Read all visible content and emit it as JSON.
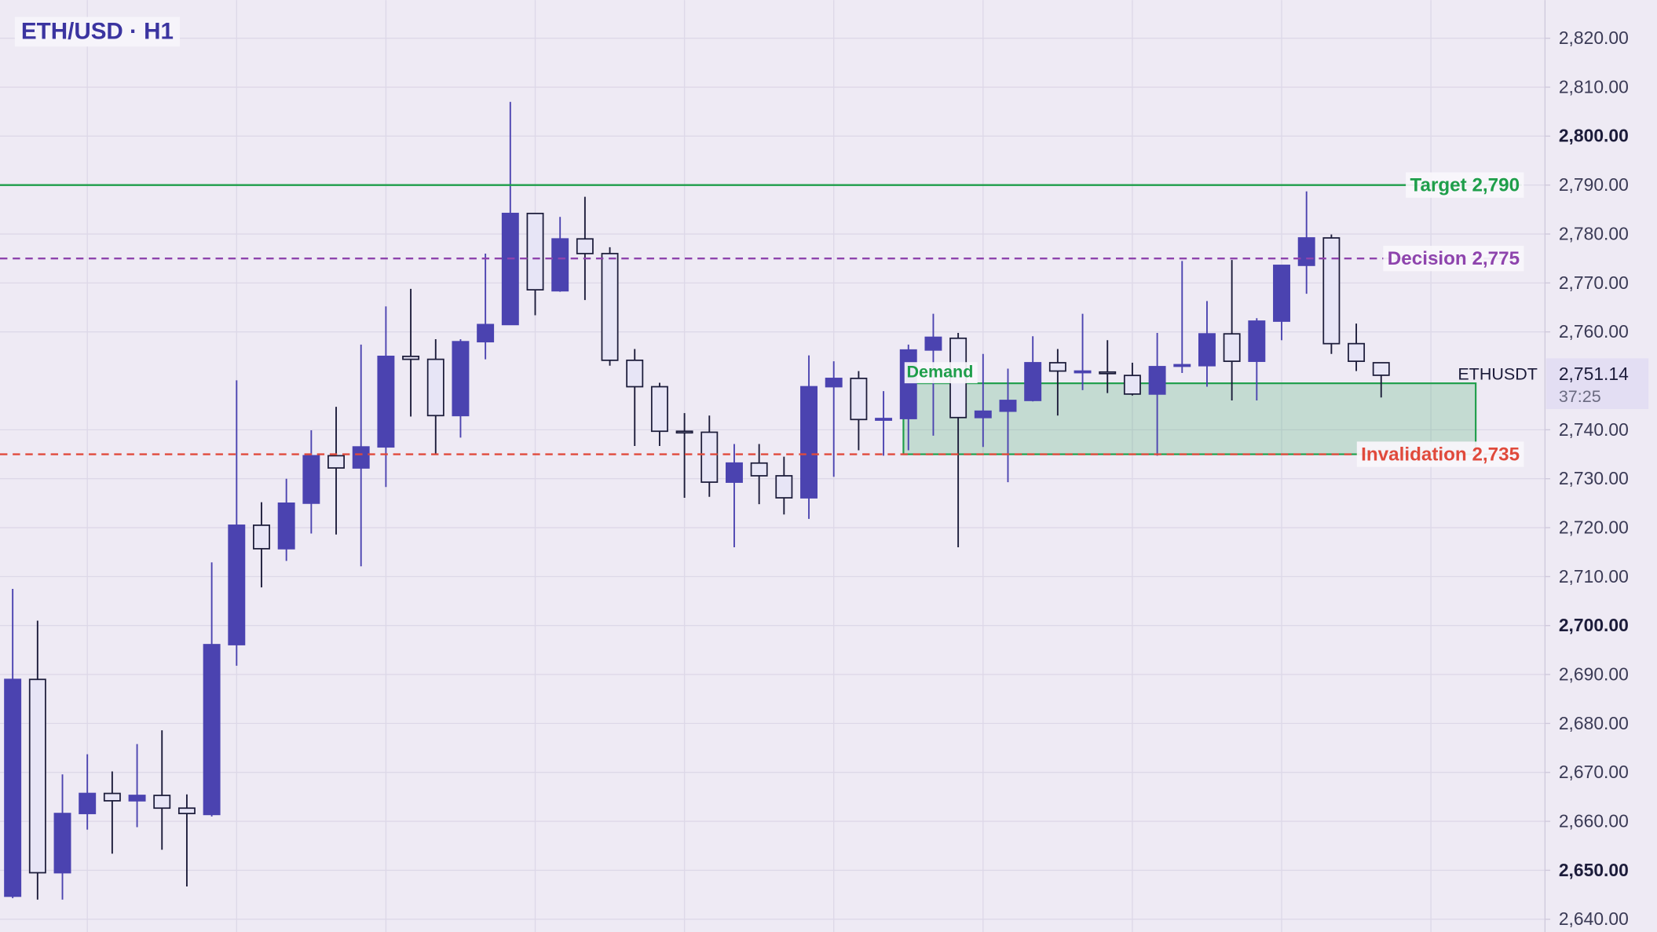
{
  "chart_data": {
    "type": "candlestick",
    "title": "ETH/USD · H1",
    "symbol": "ETHUSDT",
    "open": [
      2644.7,
      2689,
      2649.5,
      2661.6,
      2665.7,
      2664.2,
      2665.3,
      2662.7,
      2661.4,
      2696.1,
      2720.5,
      2715.7,
      2725,
      2734.7,
      2732.2,
      2736.5,
      2755,
      2754.4,
      2742.9,
      2758,
      2761.5,
      2784.2,
      2768.4,
      2779,
      2776,
      2754.2,
      2748.8,
      2739.7,
      2739.5,
      2729.3,
      2733.2,
      2730.6,
      2726.1,
      2748.8,
      2750.5,
      2742.1,
      2742.3,
      2756.3,
      2758.7,
      2742.5,
      2743.8,
      2746,
      2753.7,
      2751.8,
      2751.8,
      2751.1,
      2747.3,
      2753.1,
      2753.1,
      2759.6,
      2754,
      2762.2,
      2773.6,
      2779.2,
      2757.6,
      2753.7
    ],
    "high": [
      2707.5,
      2701,
      2669.6,
      2673.7,
      2670.2,
      2675.8,
      2678.6,
      2665.5,
      2712.9,
      2750.1,
      2725.2,
      2730,
      2739.9,
      2744.7,
      2757.4,
      2765.2,
      2768.8,
      2758.5,
      2758.5,
      2776,
      2807,
      2784.2,
      2783.5,
      2787.6,
      2777.3,
      2756.5,
      2749.6,
      2743.4,
      2742.9,
      2737.1,
      2737.1,
      2734.5,
      2755.2,
      2754,
      2752,
      2747.9,
      2757.4,
      2763.7,
      2759.8,
      2755.5,
      2752.5,
      2759.1,
      2756.5,
      2763.7,
      2758.3,
      2753.7,
      2759.8,
      2774.5,
      2766.3,
      2774.7,
      2762.8,
      2773.6,
      2788.7,
      2779.9,
      2761.7,
      2753.7
    ],
    "low": [
      2644.3,
      2644,
      2644,
      2658.3,
      2653.4,
      2658.8,
      2654.2,
      2646.7,
      2661,
      2691.8,
      2707.8,
      2713.2,
      2718.8,
      2718.6,
      2712.1,
      2728.3,
      2742.7,
      2735,
      2738.4,
      2754.4,
      2761.5,
      2763.4,
      2768.2,
      2766.5,
      2753.1,
      2736.7,
      2736.7,
      2726.1,
      2726.3,
      2716,
      2724.8,
      2722.7,
      2721.8,
      2730.4,
      2735.8,
      2734.7,
      2735.8,
      2738.8,
      2716,
      2736.5,
      2729.3,
      2745.8,
      2742.9,
      2748.1,
      2747.5,
      2747,
      2734.7,
      2751.6,
      2748.8,
      2746,
      2746,
      2758.3,
      2767.8,
      2755.5,
      2752,
      2746.6
    ],
    "close": [
      2689,
      2649.5,
      2661.6,
      2665.7,
      2664.2,
      2665.3,
      2662.7,
      2661.6,
      2696.1,
      2720.5,
      2715.7,
      2725,
      2734.7,
      2732.2,
      2736.5,
      2755,
      2754.4,
      2742.9,
      2758,
      2761.5,
      2784.2,
      2768.6,
      2779,
      2776,
      2754.2,
      2748.8,
      2739.7,
      2739.5,
      2729.3,
      2733.2,
      2730.6,
      2726.1,
      2748.8,
      2750.5,
      2742.1,
      2742.3,
      2756.3,
      2758.9,
      2742.5,
      2743.8,
      2746,
      2753.7,
      2752,
      2752,
      2751.6,
      2747.3,
      2752.9,
      2753.3,
      2759.6,
      2754,
      2762.2,
      2773.6,
      2779.2,
      2757.6,
      2754,
      2751.14
    ],
    "up_color": "#4b43b0",
    "down_color": "#e7e5f6",
    "ylim": [
      2637.4,
      2827.8
    ],
    "yticks": [
      {
        "value": 2640,
        "label": "2,640.00"
      },
      {
        "value": 2650,
        "label": "2,650.00"
      },
      {
        "value": 2660,
        "label": "2,660.00"
      },
      {
        "value": 2670,
        "label": "2,670.00"
      },
      {
        "value": 2680,
        "label": "2,680.00"
      },
      {
        "value": 2690,
        "label": "2,690.00"
      },
      {
        "value": 2700,
        "label": "2,700.00"
      },
      {
        "value": 2710,
        "label": "2,710.00"
      },
      {
        "value": 2720,
        "label": "2,720.00"
      },
      {
        "value": 2730,
        "label": "2,730.00"
      },
      {
        "value": 2740,
        "label": "2,740.00"
      },
      {
        "value": 2760,
        "label": "2,760.00"
      },
      {
        "value": 2770,
        "label": "2,770.00"
      },
      {
        "value": 2780,
        "label": "2,780.00"
      },
      {
        "value": 2790,
        "label": "2,790.00"
      },
      {
        "value": 2800,
        "label": "2,800.00"
      },
      {
        "value": 2810,
        "label": "2,810.00"
      },
      {
        "value": 2820,
        "label": "2,820.00"
      }
    ],
    "grid": true,
    "levels": [
      {
        "label": "Target 2,790",
        "value": 2790,
        "color": "#1e9e4a",
        "style": "solid"
      },
      {
        "label": "Decision 2,775",
        "value": 2775,
        "color": "#8e44ad",
        "style": "dashed"
      },
      {
        "label": "Invalidation 2,735",
        "value": 2735,
        "color": "#e04a3c",
        "style": "dashed"
      }
    ],
    "zone": {
      "label": "Demand",
      "low": 2735,
      "high": 2749.5,
      "color": "#1e9e4a"
    },
    "last_price": {
      "value": 2751.14,
      "label": "2,751.14",
      "countdown": "37:25"
    }
  }
}
